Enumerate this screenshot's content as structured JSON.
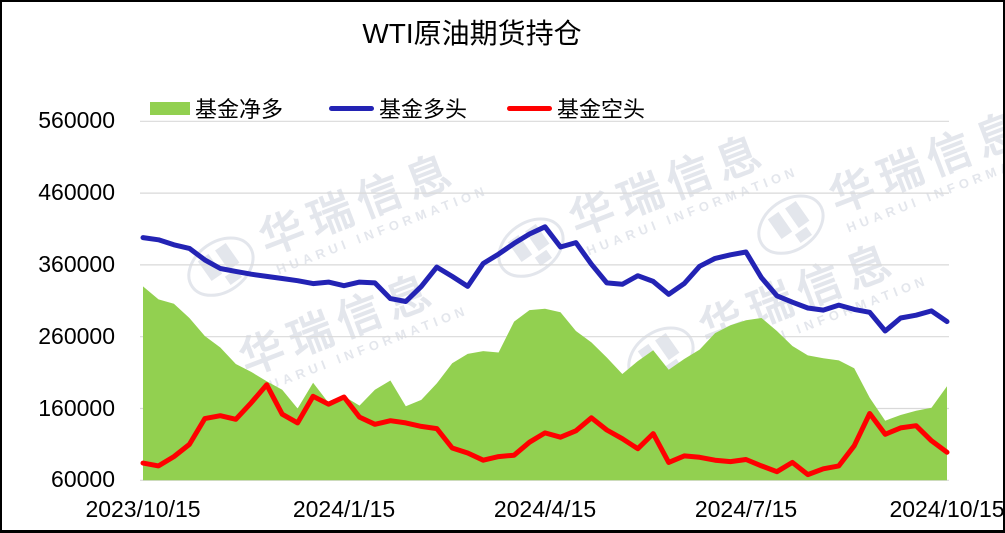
{
  "title": "WTI原油期货持仓",
  "legend": [
    {
      "label": "基金净多",
      "color": "#92D050",
      "swatch": "area"
    },
    {
      "label": "基金多头",
      "color": "#2323B4",
      "swatch": "line"
    },
    {
      "label": "基金空头",
      "color": "#FF0000",
      "swatch": "line"
    }
  ],
  "watermark": {
    "text": "华瑞信息",
    "subtext": "HUARUI INFORMATION"
  },
  "colors": {
    "net_long_area": "#92D050",
    "long_line": "#2323B4",
    "short_line": "#FF0000",
    "gridline": "#D9D9D9",
    "text": "#000000"
  },
  "chart_data": {
    "type": "area",
    "note": "weekly data, combo of filled area (net long) and two lines (long / short), grid on, legend top-left",
    "x_tick_labels": [
      "2023/10/15",
      "2024/1/15",
      "2024/4/15",
      "2024/7/15",
      "2024/10/15"
    ],
    "x_tick_indices": [
      0,
      13,
      26,
      39,
      52
    ],
    "y_tick_labels": [
      "560000",
      "460000",
      "360000",
      "260000",
      "160000",
      "60000"
    ],
    "ylim": [
      60000,
      560000
    ],
    "series": [
      {
        "name": "基金净多",
        "type": "area",
        "color": "#92D050",
        "values": [
          330000,
          312000,
          306000,
          286000,
          261000,
          245000,
          222000,
          211000,
          198000,
          186000,
          160000,
          196000,
          168000,
          177000,
          164000,
          186000,
          199000,
          163000,
          172000,
          195000,
          223000,
          236000,
          240000,
          238000,
          281000,
          297000,
          299000,
          294000,
          268000,
          252000,
          231000,
          208000,
          226000,
          241000,
          214000,
          229000,
          242000,
          265000,
          276000,
          283000,
          286000,
          268000,
          247000,
          234000,
          230000,
          227000,
          216000,
          175000,
          143000,
          151000,
          157000,
          161000,
          191000
        ]
      },
      {
        "name": "基金多头",
        "type": "line",
        "color": "#2323B4",
        "values": [
          398000,
          395000,
          388000,
          383000,
          367000,
          355000,
          351000,
          347000,
          344000,
          341000,
          338000,
          334000,
          336000,
          331000,
          336000,
          335000,
          313000,
          309000,
          330000,
          357000,
          344000,
          330000,
          362000,
          375000,
          390000,
          403000,
          413000,
          385000,
          391000,
          361000,
          335000,
          333000,
          345000,
          337000,
          319000,
          334000,
          358000,
          369000,
          374000,
          378000,
          342000,
          317000,
          308000,
          300000,
          297000,
          304000,
          298000,
          294000,
          268000,
          286000,
          290000,
          296000,
          281000
        ]
      },
      {
        "name": "基金空头",
        "type": "line",
        "color": "#FF0000",
        "values": [
          84000,
          80000,
          93000,
          110000,
          146000,
          150000,
          145000,
          168000,
          193000,
          152000,
          140000,
          177000,
          166000,
          176000,
          148000,
          138000,
          143000,
          140000,
          135000,
          132000,
          105000,
          98000,
          88000,
          93000,
          95000,
          113000,
          126000,
          120000,
          129000,
          147000,
          130000,
          118000,
          104000,
          125000,
          85000,
          94000,
          92000,
          88000,
          86000,
          89000,
          80000,
          72000,
          85000,
          68000,
          76000,
          80000,
          108000,
          153000,
          124000,
          133000,
          136000,
          115000,
          99000
        ]
      }
    ]
  }
}
